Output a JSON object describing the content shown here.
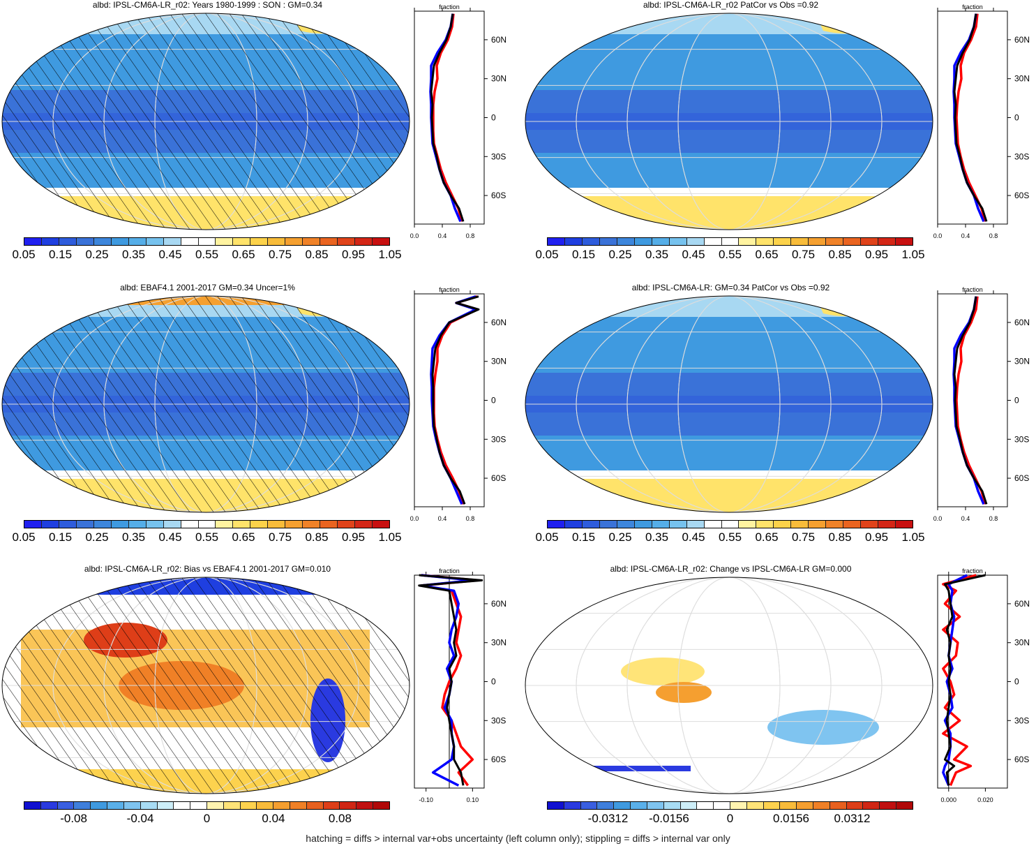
{
  "panels": [
    {
      "title": "albd: IPSL-CM6A-LR_r02: Years 1980-1999 : SON : GM=0.34",
      "palette": "seq",
      "hatch": true,
      "colorbar": {
        "labels": [
          "0.05",
          "0.15",
          "0.25",
          "0.35",
          "0.45",
          "0.55",
          "0.65",
          "0.75",
          "0.85",
          "0.95",
          "1.05"
        ],
        "levels": [
          0.05,
          0.1,
          0.15,
          0.2,
          0.25,
          0.3,
          0.35,
          0.4,
          0.45,
          0.5,
          0.55,
          0.6,
          0.65,
          0.7,
          0.75,
          0.8,
          0.85,
          0.9,
          0.95,
          1.0,
          1.05
        ],
        "label_levels": [
          0.05,
          0.15,
          0.25,
          0.35,
          0.45,
          0.55,
          0.65,
          0.75,
          0.85,
          0.95,
          1.05
        ]
      },
      "profile": {
        "title": "fraction",
        "xticks": [
          "0.0",
          "0.4",
          "0.8"
        ],
        "xtick_values": [
          0,
          0.4,
          0.8
        ],
        "xlim": [
          0,
          1.0
        ],
        "yticks": [
          "60N",
          "30N",
          "0",
          "30S",
          "60S"
        ],
        "ytick_values": [
          60,
          30,
          0,
          -30,
          -60
        ],
        "ylim": [
          -82,
          82
        ],
        "zero_line": false
      }
    },
    {
      "title": "albd: IPSL-CM6A-LR_r02 PatCor vs Obs =0.92",
      "palette": "seq",
      "hatch": false,
      "colorbar": {
        "labels": [
          "0.05",
          "0.15",
          "0.25",
          "0.35",
          "0.45",
          "0.55",
          "0.65",
          "0.75",
          "0.85",
          "0.95",
          "1.05"
        ],
        "levels": [
          0.05,
          0.1,
          0.15,
          0.2,
          0.25,
          0.3,
          0.35,
          0.4,
          0.45,
          0.5,
          0.55,
          0.6,
          0.65,
          0.7,
          0.75,
          0.8,
          0.85,
          0.9,
          0.95,
          1.0,
          1.05
        ],
        "label_levels": [
          0.05,
          0.15,
          0.25,
          0.35,
          0.45,
          0.55,
          0.65,
          0.75,
          0.85,
          0.95,
          1.05
        ]
      },
      "profile": {
        "title": "fraction",
        "xticks": [
          "0.0",
          "0.4",
          "0.8"
        ],
        "xtick_values": [
          0,
          0.4,
          0.8
        ],
        "xlim": [
          0,
          1.0
        ],
        "yticks": [
          "60N",
          "30N",
          "0",
          "30S",
          "60S"
        ],
        "ytick_values": [
          60,
          30,
          0,
          -30,
          -60
        ],
        "ylim": [
          -82,
          82
        ],
        "zero_line": false
      }
    },
    {
      "title": "albd: EBAF4.1 2001-2017 GM=0.34 Uncer=1%",
      "palette": "seq",
      "hatch": true,
      "colorbar": {
        "labels": [
          "0.05",
          "0.15",
          "0.25",
          "0.35",
          "0.45",
          "0.55",
          "0.65",
          "0.75",
          "0.85",
          "0.95",
          "1.05"
        ],
        "levels": [
          0.05,
          0.1,
          0.15,
          0.2,
          0.25,
          0.3,
          0.35,
          0.4,
          0.45,
          0.5,
          0.55,
          0.6,
          0.65,
          0.7,
          0.75,
          0.8,
          0.85,
          0.9,
          0.95,
          1.0,
          1.05
        ],
        "label_levels": [
          0.05,
          0.15,
          0.25,
          0.35,
          0.45,
          0.55,
          0.65,
          0.75,
          0.85,
          0.95,
          1.05
        ]
      },
      "profile": {
        "title": "fraction",
        "xticks": [
          "0.0",
          "0.4",
          "0.8"
        ],
        "xtick_values": [
          0,
          0.4,
          0.8
        ],
        "xlim": [
          0,
          1.0
        ],
        "yticks": [
          "60N",
          "30N",
          "0",
          "30S",
          "60S"
        ],
        "ytick_values": [
          60,
          30,
          0,
          -30,
          -60
        ],
        "ylim": [
          -82,
          82
        ],
        "zero_line": false
      }
    },
    {
      "title": "albd: IPSL-CM6A-LR: GM=0.34 PatCor vs Obs =0.92",
      "palette": "seq",
      "hatch": false,
      "colorbar": {
        "labels": [
          "0.05",
          "0.15",
          "0.25",
          "0.35",
          "0.45",
          "0.55",
          "0.65",
          "0.75",
          "0.85",
          "0.95",
          "1.05"
        ],
        "levels": [
          0.05,
          0.1,
          0.15,
          0.2,
          0.25,
          0.3,
          0.35,
          0.4,
          0.45,
          0.5,
          0.55,
          0.6,
          0.65,
          0.7,
          0.75,
          0.8,
          0.85,
          0.9,
          0.95,
          1.0,
          1.05
        ],
        "label_levels": [
          0.05,
          0.15,
          0.25,
          0.35,
          0.45,
          0.55,
          0.65,
          0.75,
          0.85,
          0.95,
          1.05
        ]
      },
      "profile": {
        "title": "fraction",
        "xticks": [
          "0.0",
          "0.4",
          "0.8"
        ],
        "xtick_values": [
          0,
          0.4,
          0.8
        ],
        "xlim": [
          0,
          1.0
        ],
        "yticks": [
          "60N",
          "30N",
          "0",
          "30S",
          "60S"
        ],
        "ytick_values": [
          60,
          30,
          0,
          -30,
          -60
        ],
        "ylim": [
          -82,
          82
        ],
        "zero_line": false
      }
    },
    {
      "title": "albd: IPSL-CM6A-LR_r02: Bias vs EBAF4.1 2001-2017  GM=0.010",
      "palette": "div",
      "hatch": true,
      "colorbar": {
        "labels": [
          "-0.08",
          "-0.04",
          "0",
          "0.04",
          "0.08"
        ],
        "levels": [
          -0.11,
          -0.1,
          -0.09,
          -0.08,
          -0.07,
          -0.06,
          -0.05,
          -0.04,
          -0.03,
          -0.02,
          -0.01,
          0,
          0.01,
          0.02,
          0.03,
          0.04,
          0.05,
          0.06,
          0.07,
          0.08,
          0.09,
          0.1,
          0.11
        ],
        "label_levels": [
          -0.08,
          -0.04,
          0,
          0.04,
          0.08
        ]
      },
      "profile": {
        "title": "fraction",
        "xticks": [
          "-0.10",
          "0.10"
        ],
        "xtick_values": [
          -0.1,
          0.1
        ],
        "xlim": [
          -0.15,
          0.15
        ],
        "yticks": [
          "60N",
          "30N",
          "0",
          "30S",
          "60S"
        ],
        "ytick_values": [
          60,
          30,
          0,
          -30,
          -60
        ],
        "ylim": [
          -82,
          82
        ],
        "zero_line": true
      }
    },
    {
      "title": "albd: IPSL-CM6A-LR_r02: Change vs IPSL-CM6A-LR GM=0.000",
      "palette": "div",
      "hatch": false,
      "colorbar": {
        "labels": [
          "-0.0312",
          "-0.0156",
          "0",
          "0.0156",
          "0.0312"
        ],
        "levels": [
          -0.0468,
          -0.039,
          -0.0312,
          -0.0234,
          -0.0156,
          -0.0078,
          0,
          0.0078,
          0.0156,
          0.0234,
          0.0312,
          0.039,
          0.0468
        ],
        "label_levels": [
          -0.0312,
          -0.0156,
          0,
          0.0156,
          0.0312
        ]
      },
      "profile": {
        "title": "fraction",
        "xticks": [
          "0.000",
          "0.020"
        ],
        "xtick_values": [
          0,
          0.02
        ],
        "xlim": [
          -0.006,
          0.032
        ],
        "yticks": [
          "60N",
          "30N",
          "0",
          "30S",
          "60S"
        ],
        "ytick_values": [
          60,
          30,
          0,
          -30,
          -60
        ],
        "ylim": [
          -82,
          82
        ],
        "zero_line": true
      }
    }
  ],
  "colors": {
    "seq_palette": [
      "#2020f0",
      "#1f3fe0",
      "#2e5cdc",
      "#3a72d8",
      "#3d86dc",
      "#3f9ae0",
      "#55aee8",
      "#76c2ee",
      "#a8d8f2",
      "#ffffff",
      "#ffffff",
      "#fff3a0",
      "#ffe36a",
      "#fcd24a",
      "#f8bc3a",
      "#f5a030",
      "#f08228",
      "#ea6420",
      "#e0431a",
      "#d42616",
      "#c81010"
    ],
    "div_palette": [
      "#1010d0",
      "#2a3ae0",
      "#3a5fe0",
      "#3f7fdc",
      "#3f9ae0",
      "#5ab0ea",
      "#7fc4f0",
      "#a8dcf4",
      "#cdeef8",
      "#ffffff",
      "#ffffff",
      "#fff4b0",
      "#ffe478",
      "#fdd24e",
      "#f9bb3a",
      "#f59f30",
      "#f08026",
      "#e8601e",
      "#de3e18",
      "#d02614",
      "#c01010",
      "#b00808"
    ],
    "obs": "#000000",
    "model_a": "#ff0000",
    "model_b": "#0000ff"
  },
  "chart_data": [
    {
      "type": "line",
      "title": "fraction",
      "panel": "albd: IPSL-CM6A-LR_r02: Years 1980-1999 : SON : GM=0.34",
      "y_lat": [
        80,
        70,
        60,
        50,
        40,
        30,
        20,
        10,
        0,
        -10,
        -20,
        -30,
        -40,
        -50,
        -60,
        -70,
        -80
      ],
      "series": [
        {
          "color": "#000000",
          "values": [
            0.55,
            0.52,
            0.46,
            0.36,
            0.28,
            0.26,
            0.24,
            0.26,
            0.25,
            0.26,
            0.27,
            0.32,
            0.36,
            0.42,
            0.52,
            0.64,
            0.7
          ]
        },
        {
          "color": "#ff0000",
          "values": [
            0.56,
            0.54,
            0.48,
            0.38,
            0.32,
            0.33,
            0.29,
            0.27,
            0.27,
            0.27,
            0.28,
            0.33,
            0.38,
            0.45,
            0.54,
            0.63,
            0.68
          ]
        },
        {
          "color": "#0000ff",
          "values": [
            0.55,
            0.52,
            0.45,
            0.33,
            0.24,
            0.24,
            0.23,
            0.24,
            0.24,
            0.25,
            0.26,
            0.31,
            0.36,
            0.42,
            0.52,
            0.58,
            0.66
          ]
        }
      ]
    },
    {
      "type": "line",
      "title": "fraction",
      "panel": "albd: IPSL-CM6A-LR_r02 PatCor vs Obs =0.92",
      "y_lat": [
        80,
        70,
        60,
        50,
        40,
        30,
        20,
        10,
        0,
        -10,
        -20,
        -30,
        -40,
        -50,
        -60,
        -70,
        -80
      ],
      "series": [
        {
          "color": "#000000",
          "values": [
            0.55,
            0.52,
            0.46,
            0.36,
            0.28,
            0.26,
            0.24,
            0.26,
            0.25,
            0.26,
            0.27,
            0.32,
            0.36,
            0.42,
            0.52,
            0.64,
            0.7
          ]
        },
        {
          "color": "#ff0000",
          "values": [
            0.57,
            0.55,
            0.48,
            0.38,
            0.33,
            0.34,
            0.3,
            0.28,
            0.27,
            0.28,
            0.29,
            0.33,
            0.38,
            0.45,
            0.54,
            0.63,
            0.68
          ]
        },
        {
          "color": "#0000ff",
          "values": [
            0.55,
            0.52,
            0.45,
            0.33,
            0.24,
            0.24,
            0.23,
            0.24,
            0.24,
            0.25,
            0.26,
            0.31,
            0.36,
            0.42,
            0.52,
            0.58,
            0.66
          ]
        }
      ]
    },
    {
      "type": "line",
      "title": "fraction",
      "panel": "albd: EBAF4.1 2001-2017 GM=0.34 Uncer=1%",
      "y_lat": [
        80,
        75,
        70,
        60,
        50,
        40,
        30,
        20,
        10,
        0,
        -10,
        -20,
        -30,
        -40,
        -50,
        -60,
        -70,
        -80
      ],
      "series": [
        {
          "color": "#000000",
          "values": [
            0.92,
            0.6,
            0.92,
            0.5,
            0.38,
            0.3,
            0.28,
            0.26,
            0.27,
            0.27,
            0.27,
            0.28,
            0.32,
            0.36,
            0.42,
            0.52,
            0.65,
            0.72
          ]
        },
        {
          "color": "#ff0000",
          "values": [
            0.9,
            0.6,
            0.9,
            0.52,
            0.4,
            0.33,
            0.33,
            0.3,
            0.28,
            0.28,
            0.28,
            0.29,
            0.33,
            0.38,
            0.45,
            0.55,
            0.64,
            0.7
          ]
        },
        {
          "color": "#0000ff",
          "values": [
            0.88,
            0.6,
            0.88,
            0.5,
            0.36,
            0.26,
            0.25,
            0.24,
            0.25,
            0.25,
            0.26,
            0.27,
            0.31,
            0.36,
            0.42,
            0.52,
            0.6,
            0.68
          ]
        }
      ]
    },
    {
      "type": "line",
      "title": "fraction",
      "panel": "albd: IPSL-CM6A-LR: GM=0.34 PatCor vs Obs =0.92",
      "y_lat": [
        80,
        70,
        60,
        50,
        40,
        30,
        20,
        10,
        0,
        -10,
        -20,
        -30,
        -40,
        -50,
        -60,
        -70,
        -80
      ],
      "series": [
        {
          "color": "#000000",
          "values": [
            0.55,
            0.52,
            0.46,
            0.36,
            0.28,
            0.26,
            0.24,
            0.26,
            0.25,
            0.26,
            0.27,
            0.32,
            0.36,
            0.42,
            0.52,
            0.64,
            0.7
          ]
        },
        {
          "color": "#ff0000",
          "values": [
            0.57,
            0.55,
            0.48,
            0.38,
            0.33,
            0.34,
            0.3,
            0.28,
            0.27,
            0.28,
            0.29,
            0.33,
            0.38,
            0.45,
            0.54,
            0.63,
            0.68
          ]
        },
        {
          "color": "#0000ff",
          "values": [
            0.55,
            0.52,
            0.45,
            0.33,
            0.24,
            0.24,
            0.23,
            0.24,
            0.24,
            0.25,
            0.26,
            0.31,
            0.36,
            0.42,
            0.52,
            0.58,
            0.66
          ]
        }
      ]
    },
    {
      "type": "line",
      "title": "fraction",
      "panel": "albd: IPSL-CM6A-LR_r02: Bias vs EBAF4.1 2001-2017  GM=0.010",
      "y_lat": [
        82,
        78,
        74,
        70,
        60,
        50,
        40,
        30,
        20,
        10,
        0,
        -10,
        -20,
        -30,
        -40,
        -50,
        -60,
        -70,
        -80
      ],
      "series": [
        {
          "color": "#000000",
          "values": [
            -0.13,
            0.14,
            -0.13,
            0.0,
            0.01,
            0.02,
            0.03,
            0.02,
            0.03,
            0.0,
            0.01,
            0.0,
            -0.01,
            0.0,
            0.01,
            0.02,
            0.02,
            0.05,
            0.06
          ]
        },
        {
          "color": "#ff0000",
          "values": [
            -0.12,
            0.12,
            -0.12,
            0.01,
            0.03,
            0.05,
            0.04,
            0.03,
            0.05,
            0.03,
            0.0,
            -0.02,
            -0.03,
            0.01,
            0.03,
            0.05,
            0.1,
            0.04,
            0.08
          ]
        },
        {
          "color": "#0000ff",
          "values": [
            -0.12,
            0.1,
            -0.12,
            0.02,
            0.04,
            0.03,
            0.01,
            0.0,
            0.02,
            -0.01,
            0.01,
            0.0,
            -0.02,
            0.01,
            0.01,
            0.02,
            0.01,
            -0.07,
            0.04
          ]
        }
      ]
    },
    {
      "type": "line",
      "title": "fraction",
      "panel": "albd: IPSL-CM6A-LR_r02: Change vs IPSL-CM6A-LR GM=0.000",
      "y_lat": [
        82,
        75,
        70,
        60,
        50,
        40,
        30,
        20,
        10,
        0,
        -10,
        -20,
        -30,
        -40,
        -50,
        -60,
        -65,
        -70,
        -80
      ],
      "series": [
        {
          "color": "#000000",
          "values": [
            0.02,
            -0.002,
            0.0,
            0.001,
            0.002,
            -0.001,
            0.001,
            0.0,
            0.001,
            0.0,
            0.001,
            0.0,
            -0.001,
            0.0,
            0.001,
            -0.002,
            0.003,
            -0.001,
            0.0
          ]
        },
        {
          "color": "#ff0000",
          "values": [
            0.015,
            -0.003,
            0.004,
            -0.002,
            0.006,
            -0.003,
            0.005,
            0.004,
            -0.003,
            0.001,
            0.003,
            -0.002,
            0.006,
            -0.003,
            0.01,
            0.003,
            0.012,
            0.004,
            0.001
          ]
        },
        {
          "color": "#0000ff",
          "values": [
            0.01,
            0.0,
            0.002,
            0.001,
            0.003,
            0.002,
            0.001,
            0.0,
            0.002,
            -0.001,
            0.001,
            0.002,
            -0.002,
            0.001,
            0.001,
            0.0,
            -0.002,
            -0.003,
            0.0
          ]
        }
      ]
    }
  ],
  "footer": "hatching = diffs > internal var+obs uncertainty (left column only); stippling = diffs > internal var only"
}
